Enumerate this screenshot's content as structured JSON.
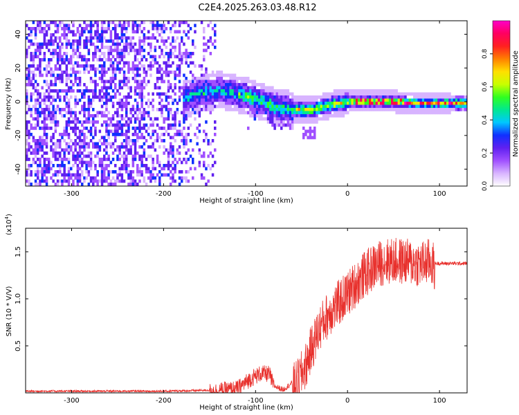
{
  "title": "C2E4.2025.263.03.48.R12",
  "chart_data": [
    {
      "type": "heatmap",
      "title": "C2E4.2025.263.03.48.R12",
      "xlabel": "Height of straight line (km)",
      "ylabel": "Frequency (Hz)",
      "xlim": [
        -350,
        130
      ],
      "ylim": [
        -50,
        48
      ],
      "xticks": [
        -300,
        -200,
        -100,
        0,
        100
      ],
      "yticks": [
        -40,
        -20,
        0,
        20,
        40
      ],
      "colorbar": {
        "label": "Normalized spectral amplitude",
        "range": [
          0,
          1
        ],
        "ticks": [
          0.0,
          0.2,
          0.4,
          0.6,
          0.8
        ],
        "tick_labels": [
          "0.0",
          "0.2",
          "0.4",
          "0.6",
          "0.8"
        ],
        "colors": [
          "#ffffff",
          "#d8b4ff",
          "#a050ff",
          "#6020f0",
          "#1030ff",
          "#00c8ff",
          "#00e890",
          "#30ff20",
          "#c8ff00",
          "#ffe000",
          "#ff8000",
          "#ff2020",
          "#ff0060",
          "#ff00c8"
        ]
      },
      "ridge": {
        "description": "dominant frequency ridge",
        "x": [
          -175,
          -160,
          -140,
          -125,
          -110,
          -95,
          -80,
          -60,
          -40,
          -20,
          0,
          20,
          50,
          80,
          110,
          130
        ],
        "y": [
          3,
          6,
          8,
          6,
          4,
          1,
          -2,
          -4,
          -4,
          -1,
          1,
          1,
          1,
          0,
          0,
          0
        ]
      }
    },
    {
      "type": "line",
      "xlabel": "Height of straight line (km)",
      "ylabel": "SNR (10 * V/V)",
      "y_multiplier_label": "(x10",
      "y_multiplier_exp": "4",
      "y_multiplier_close": ")",
      "xlim": [
        -350,
        130
      ],
      "ylim": [
        0,
        1.75
      ],
      "xticks": [
        -300,
        -200,
        -100,
        0,
        100
      ],
      "yticks": [
        0.5,
        1.0,
        1.5
      ],
      "ytick_labels": [
        "0.5",
        "1.0",
        "1.5"
      ],
      "color": "#e8302c",
      "envelope": {
        "x": [
          -350,
          -200,
          -150,
          -120,
          -105,
          -95,
          -85,
          -80,
          -70,
          -55,
          -45,
          -40,
          -30,
          -20,
          -10,
          0,
          10,
          20,
          30,
          40,
          60,
          80,
          90,
          95,
          110,
          130
        ],
        "y": [
          0.02,
          0.02,
          0.03,
          0.06,
          0.17,
          0.22,
          0.22,
          0.08,
          0.04,
          0.15,
          0.35,
          0.5,
          0.75,
          0.9,
          1.0,
          1.1,
          1.22,
          1.32,
          1.4,
          1.45,
          1.45,
          1.42,
          1.45,
          1.38,
          1.38,
          1.38
        ]
      }
    }
  ]
}
